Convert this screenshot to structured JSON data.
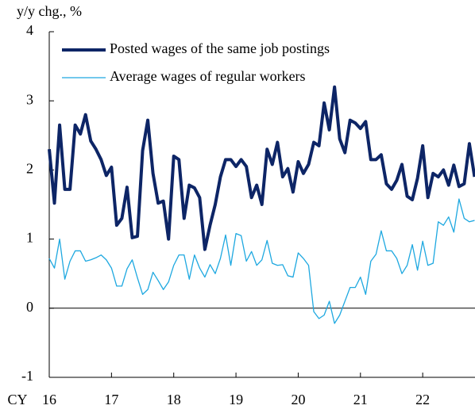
{
  "chart_data": {
    "type": "line",
    "y_axis_label": "y/y chg., %",
    "x_axis_label": "CY",
    "categories": [
      "16",
      null,
      null,
      null,
      null,
      null,
      null,
      null,
      null,
      null,
      null,
      null,
      "17",
      null,
      null,
      null,
      null,
      null,
      null,
      null,
      null,
      null,
      null,
      null,
      "18",
      null,
      null,
      null,
      null,
      null,
      null,
      null,
      null,
      null,
      null,
      null,
      "19",
      null,
      null,
      null,
      null,
      null,
      null,
      null,
      null,
      null,
      null,
      null,
      "20",
      null,
      null,
      null,
      null,
      null,
      null,
      null,
      null,
      null,
      null,
      null,
      "21",
      null,
      null,
      null,
      null,
      null,
      null,
      null,
      null,
      null,
      null,
      null,
      "22",
      null,
      null,
      null,
      null,
      null,
      null,
      null,
      null,
      null,
      null
    ],
    "series": [
      {
        "name": "Posted wages of the same job postings",
        "color": "#0d2566",
        "width": 4,
        "values": [
          2.3,
          1.52,
          2.65,
          1.72,
          1.72,
          2.65,
          2.52,
          2.8,
          2.42,
          2.3,
          2.15,
          1.92,
          2.04,
          1.2,
          1.3,
          1.75,
          1.02,
          1.04,
          2.28,
          2.72,
          1.95,
          1.52,
          1.55,
          1.0,
          2.2,
          2.15,
          1.3,
          1.78,
          1.74,
          1.6,
          0.85,
          1.2,
          1.5,
          1.9,
          2.15,
          2.15,
          2.05,
          2.15,
          2.05,
          1.6,
          1.78,
          1.5,
          2.3,
          2.08,
          2.4,
          1.9,
          2.02,
          1.68,
          2.12,
          1.95,
          2.08,
          2.4,
          2.35,
          2.97,
          2.58,
          3.2,
          2.45,
          2.25,
          2.72,
          2.68,
          2.6,
          2.7,
          2.15,
          2.15,
          2.22,
          1.8,
          1.72,
          1.85,
          2.08,
          1.62,
          1.57,
          1.88,
          2.35,
          1.6,
          1.95,
          1.9,
          2.0,
          1.78,
          2.07,
          1.76,
          1.8,
          2.38,
          1.9
        ]
      },
      {
        "name": "Average wages of regular workers",
        "color": "#1ea8e0",
        "width": 1.3,
        "values": [
          0.72,
          0.58,
          1.0,
          0.42,
          0.68,
          0.83,
          0.83,
          0.68,
          0.7,
          0.73,
          0.77,
          0.7,
          0.58,
          0.32,
          0.32,
          0.57,
          0.7,
          0.44,
          0.2,
          0.27,
          0.52,
          0.4,
          0.27,
          0.38,
          0.62,
          0.77,
          0.77,
          0.42,
          0.77,
          0.58,
          0.45,
          0.63,
          0.5,
          0.72,
          1.06,
          0.62,
          1.08,
          1.05,
          0.68,
          0.82,
          0.62,
          0.7,
          0.98,
          0.65,
          0.62,
          0.63,
          0.47,
          0.45,
          0.8,
          0.72,
          0.62,
          -0.05,
          -0.15,
          -0.1,
          0.1,
          -0.22,
          -0.1,
          0.1,
          0.3,
          0.3,
          0.45,
          0.2,
          0.68,
          0.78,
          1.12,
          0.83,
          0.83,
          0.72,
          0.5,
          0.62,
          0.92,
          0.55,
          0.97,
          0.62,
          0.65,
          1.25,
          1.2,
          1.32,
          1.1,
          1.58,
          1.3,
          1.25,
          1.27
        ]
      }
    ],
    "ylim": [
      -1,
      4
    ],
    "yticks": [
      -1,
      0,
      1,
      2,
      3,
      4
    ],
    "zero_line": true,
    "legend": "top-left"
  }
}
